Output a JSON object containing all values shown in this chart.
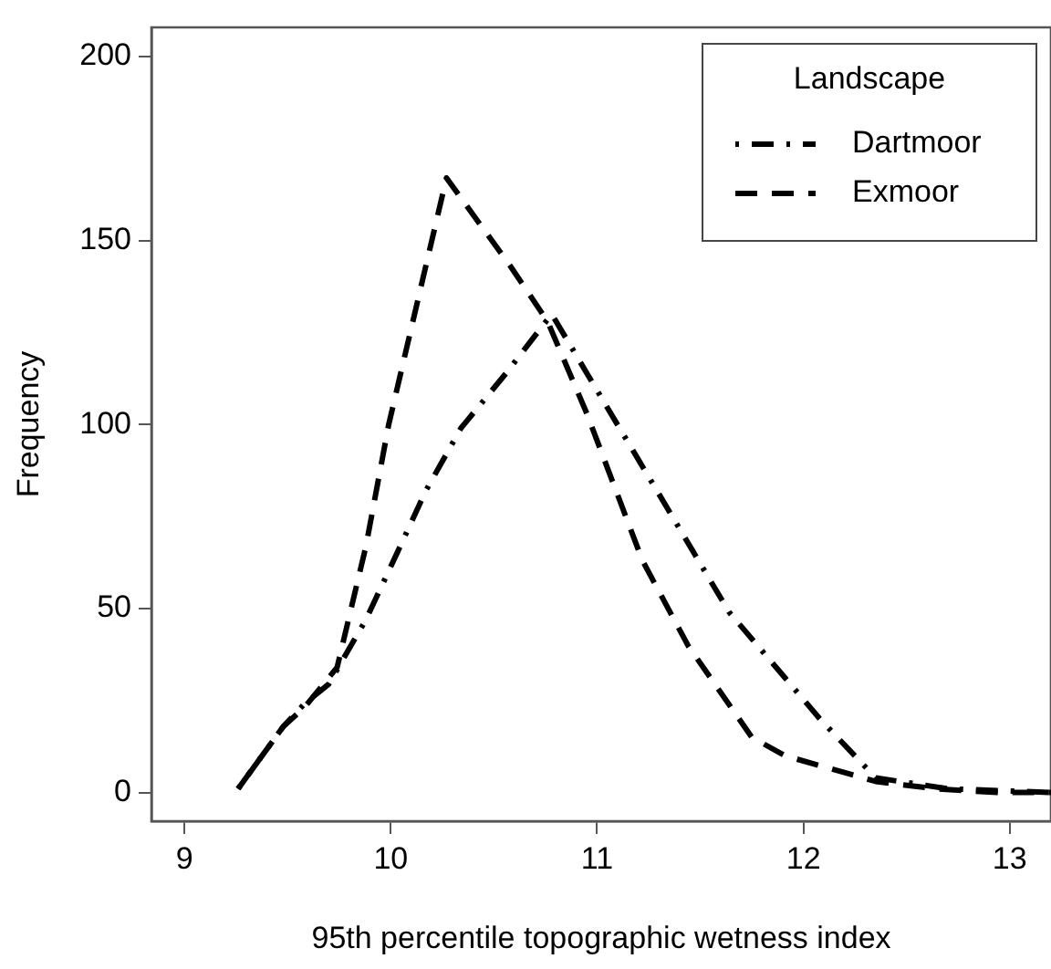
{
  "chart_data": {
    "type": "line",
    "xlabel": "95th percentile topographic wetness index",
    "ylabel": "Frequency",
    "legend_title": "Landscape",
    "legend": "top right",
    "grid": false,
    "marker": "none",
    "xlim": [
      8.84,
      13.2
    ],
    "xticks": [
      9,
      10,
      11,
      12,
      13
    ],
    "ylim": [
      -7.8,
      207.9
    ],
    "yticks": [
      0,
      50,
      100,
      150,
      200
    ],
    "series": [
      {
        "name": "Dartmoor",
        "color": "#000000",
        "line_style": "dashdot",
        "x": [
          9.26,
          9.48,
          9.58,
          9.7,
          9.88,
          10.03,
          10.17,
          10.34,
          10.56,
          10.78,
          10.96,
          11.29,
          11.64,
          12.08,
          12.35,
          12.7,
          13.2
        ],
        "values": [
          1,
          18,
          24,
          29.5,
          47,
          65,
          82,
          99,
          114,
          130,
          113,
          82,
          49,
          20,
          4,
          1,
          0
        ]
      },
      {
        "name": "Exmoor",
        "color": "#000000",
        "line_style": "dashed",
        "x": [
          9.26,
          9.48,
          9.58,
          9.74,
          9.88,
          9.99,
          10.27,
          10.58,
          10.76,
          10.95,
          11.22,
          11.44,
          11.75,
          11.91,
          12.35,
          12.64,
          12.94,
          13.2
        ],
        "values": [
          1,
          18,
          23,
          34,
          67,
          100,
          167,
          143,
          128,
          103,
          63,
          40,
          15,
          10,
          3,
          1,
          0,
          0
        ]
      }
    ]
  }
}
